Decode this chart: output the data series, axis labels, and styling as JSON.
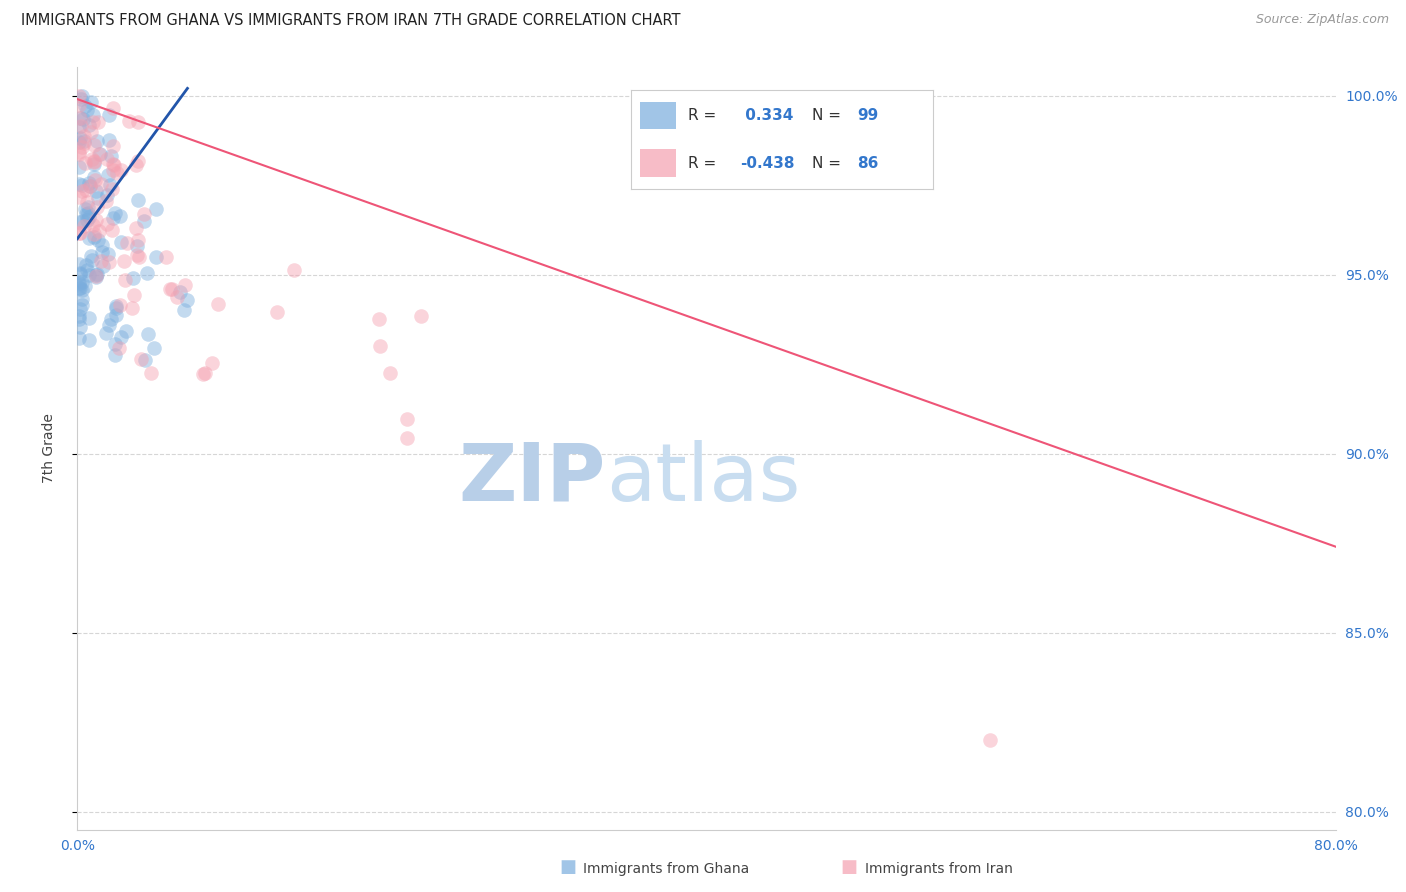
{
  "title": "IMMIGRANTS FROM GHANA VS IMMIGRANTS FROM IRAN 7TH GRADE CORRELATION CHART",
  "source": "Source: ZipAtlas.com",
  "ylabel": "7th Grade",
  "xlim": [
    0.0,
    0.8
  ],
  "ylim": [
    0.795,
    1.008
  ],
  "yticks": [
    0.8,
    0.85,
    0.9,
    0.95,
    1.0
  ],
  "ytick_labels": [
    "80.0%",
    "85.0%",
    "90.0%",
    "95.0%",
    "100.0%"
  ],
  "xticks": [
    0.0,
    0.2,
    0.4,
    0.6,
    0.8
  ],
  "xtick_labels": [
    "0.0%",
    "",
    "",
    "",
    "80.0%"
  ],
  "ghana_R": 0.334,
  "ghana_N": 99,
  "iran_R": -0.438,
  "iran_N": 86,
  "ghana_color": "#7aaddd",
  "iran_color": "#f4a0b0",
  "ghana_line_color": "#2255aa",
  "iran_line_color": "#ee5577",
  "watermark_zip": "ZIP",
  "watermark_atlas": "atlas",
  "watermark_color": "#ccddef",
  "grid_color": "#cccccc",
  "axis_label_color": "#3377cc",
  "ghana_trendline_x": [
    0.0,
    0.07
  ],
  "ghana_trendline_y": [
    0.96,
    1.002
  ],
  "iran_trendline_x": [
    0.0,
    0.8
  ],
  "iran_trendline_y": [
    0.999,
    0.874
  ]
}
